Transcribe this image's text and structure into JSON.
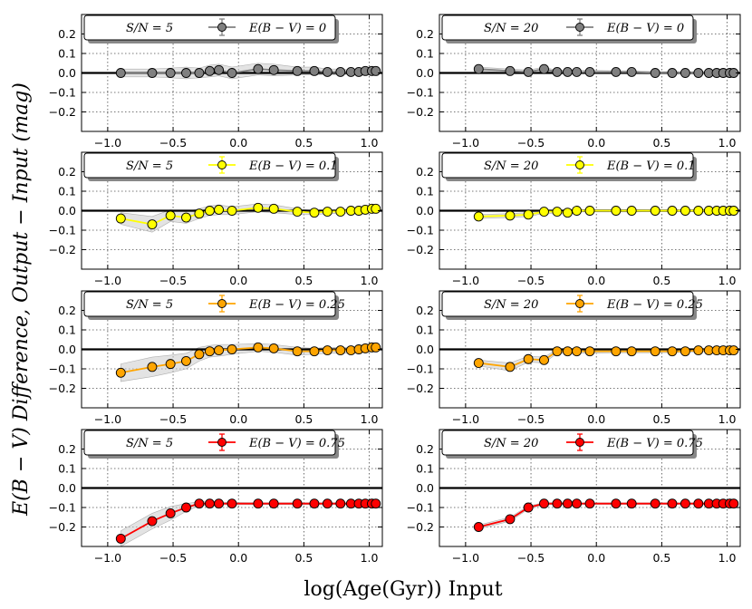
{
  "figure": {
    "ylabel": "E(B − V) Difference, Output − Input (mag)",
    "xlabel": "log(Age(Gyr)) Input"
  },
  "chart_data": [
    {
      "type": "line",
      "sn": "S/N = 5",
      "series_name": "E(B − V) = 0",
      "color": "#808080",
      "x": [
        -0.9,
        -0.66,
        -0.52,
        -0.4,
        -0.3,
        -0.22,
        -0.15,
        -0.05,
        0.15,
        0.27,
        0.45,
        0.58,
        0.68,
        0.78,
        0.86,
        0.92,
        0.97,
        1.02,
        1.05
      ],
      "y": [
        0.0,
        0.0,
        0.0,
        0.0,
        0.0,
        0.01,
        0.015,
        0.0,
        0.02,
        0.015,
        0.01,
        0.01,
        0.005,
        0.005,
        0.005,
        0.005,
        0.01,
        0.01,
        0.01
      ],
      "band": [
        0.02,
        0.02,
        0.025,
        0.03,
        0.025,
        0.03,
        0.03,
        0.03,
        0.03,
        0.03,
        0.02,
        0.02,
        0.015,
        0.015,
        0.01,
        0.01,
        0.01,
        0.01,
        0.01
      ]
    },
    {
      "type": "line",
      "sn": "S/N = 20",
      "series_name": "E(B − V) = 0",
      "color": "#808080",
      "x": [
        -0.9,
        -0.66,
        -0.52,
        -0.4,
        -0.3,
        -0.22,
        -0.15,
        -0.05,
        0.15,
        0.27,
        0.45,
        0.58,
        0.68,
        0.78,
        0.86,
        0.92,
        0.97,
        1.02,
        1.05
      ],
      "y": [
        0.02,
        0.01,
        0.005,
        0.02,
        0.005,
        0.005,
        0.005,
        0.005,
        0.005,
        0.005,
        0.0,
        0.0,
        0.0,
        0.0,
        0.0,
        0.0,
        0.0,
        0.0,
        0.0
      ],
      "band": [
        0.01,
        0.01,
        0.01,
        0.01,
        0.008,
        0.008,
        0.008,
        0.008,
        0.006,
        0.006,
        0.006,
        0.005,
        0.005,
        0.005,
        0.005,
        0.005,
        0.005,
        0.005,
        0.005
      ]
    },
    {
      "type": "line",
      "sn": "S/N = 5",
      "series_name": "E(B − V) = 0.1",
      "color": "#ffff00",
      "x": [
        -0.9,
        -0.66,
        -0.52,
        -0.4,
        -0.3,
        -0.22,
        -0.15,
        -0.05,
        0.15,
        0.27,
        0.45,
        0.58,
        0.68,
        0.78,
        0.86,
        0.92,
        0.97,
        1.02,
        1.05
      ],
      "y": [
        -0.04,
        -0.07,
        -0.025,
        -0.035,
        -0.015,
        0.0,
        0.005,
        0.0,
        0.015,
        0.01,
        -0.005,
        -0.01,
        -0.005,
        -0.005,
        0.0,
        0.0,
        0.005,
        0.01,
        0.01
      ],
      "band": [
        0.03,
        0.04,
        0.03,
        0.03,
        0.025,
        0.025,
        0.025,
        0.02,
        0.02,
        0.02,
        0.015,
        0.01,
        0.01,
        0.01,
        0.01,
        0.01,
        0.01,
        0.01,
        0.01
      ]
    },
    {
      "type": "line",
      "sn": "S/N = 20",
      "series_name": "E(B − V) = 0.1",
      "color": "#ffff00",
      "x": [
        -0.9,
        -0.66,
        -0.52,
        -0.4,
        -0.3,
        -0.22,
        -0.15,
        -0.05,
        0.15,
        0.27,
        0.45,
        0.58,
        0.68,
        0.78,
        0.86,
        0.92,
        0.97,
        1.02,
        1.05
      ],
      "y": [
        -0.03,
        -0.025,
        -0.02,
        -0.005,
        -0.005,
        -0.01,
        0.0,
        0.0,
        0.0,
        0.0,
        0.0,
        0.0,
        0.0,
        0.0,
        0.0,
        0.0,
        0.0,
        0.0,
        0.0
      ],
      "band": [
        0.01,
        0.01,
        0.01,
        0.008,
        0.008,
        0.008,
        0.006,
        0.006,
        0.006,
        0.006,
        0.005,
        0.005,
        0.005,
        0.005,
        0.005,
        0.005,
        0.005,
        0.005,
        0.005
      ]
    },
    {
      "type": "line",
      "sn": "S/N = 5",
      "series_name": "E(B − V) = 0.25",
      "color": "#ffa500",
      "x": [
        -0.9,
        -0.66,
        -0.52,
        -0.4,
        -0.3,
        -0.22,
        -0.15,
        -0.05,
        0.15,
        0.27,
        0.45,
        0.58,
        0.68,
        0.78,
        0.86,
        0.92,
        0.97,
        1.02,
        1.05
      ],
      "y": [
        -0.12,
        -0.09,
        -0.075,
        -0.06,
        -0.025,
        -0.01,
        -0.005,
        0.0,
        0.01,
        0.005,
        -0.01,
        -0.01,
        -0.005,
        -0.005,
        -0.005,
        0.0,
        0.005,
        0.01,
        0.01
      ],
      "band": [
        0.045,
        0.05,
        0.045,
        0.04,
        0.035,
        0.03,
        0.03,
        0.025,
        0.02,
        0.02,
        0.02,
        0.015,
        0.015,
        0.015,
        0.015,
        0.015,
        0.015,
        0.01,
        0.01
      ]
    },
    {
      "type": "line",
      "sn": "S/N = 20",
      "series_name": "E(B − V) = 0.25",
      "color": "#ffa500",
      "x": [
        -0.9,
        -0.66,
        -0.52,
        -0.4,
        -0.3,
        -0.22,
        -0.15,
        -0.05,
        0.15,
        0.27,
        0.45,
        0.58,
        0.68,
        0.78,
        0.86,
        0.92,
        0.97,
        1.02,
        1.05
      ],
      "y": [
        -0.07,
        -0.09,
        -0.05,
        -0.055,
        -0.01,
        -0.01,
        -0.01,
        -0.01,
        -0.01,
        -0.01,
        -0.01,
        -0.01,
        -0.01,
        -0.005,
        -0.005,
        -0.005,
        -0.005,
        -0.005,
        -0.005
      ],
      "band": [
        0.015,
        0.02,
        0.015,
        0.015,
        0.01,
        0.01,
        0.01,
        0.01,
        0.008,
        0.008,
        0.008,
        0.006,
        0.006,
        0.006,
        0.006,
        0.006,
        0.006,
        0.006,
        0.006
      ]
    },
    {
      "type": "line",
      "sn": "S/N = 5",
      "series_name": "E(B − V) = 0.75",
      "color": "#ff0000",
      "x": [
        -0.9,
        -0.66,
        -0.52,
        -0.4,
        -0.3,
        -0.22,
        -0.15,
        -0.05,
        0.15,
        0.27,
        0.45,
        0.58,
        0.68,
        0.78,
        0.86,
        0.92,
        0.97,
        1.02,
        1.05
      ],
      "y": [
        -0.26,
        -0.17,
        -0.13,
        -0.1,
        -0.08,
        -0.08,
        -0.08,
        -0.08,
        -0.08,
        -0.08,
        -0.08,
        -0.08,
        -0.08,
        -0.08,
        -0.08,
        -0.08,
        -0.08,
        -0.08,
        -0.08
      ],
      "band": [
        0.04,
        0.04,
        0.035,
        0.02,
        0.01,
        0.008,
        0.006,
        0.006,
        0.005,
        0.005,
        0.005,
        0.005,
        0.005,
        0.005,
        0.005,
        0.005,
        0.005,
        0.005,
        0.005
      ]
    },
    {
      "type": "line",
      "sn": "S/N = 20",
      "series_name": "E(B − V) = 0.75",
      "color": "#ff0000",
      "x": [
        -0.9,
        -0.66,
        -0.52,
        -0.4,
        -0.3,
        -0.22,
        -0.15,
        -0.05,
        0.15,
        0.27,
        0.45,
        0.58,
        0.68,
        0.78,
        0.86,
        0.92,
        0.97,
        1.02,
        1.05
      ],
      "y": [
        -0.2,
        -0.16,
        -0.1,
        -0.08,
        -0.08,
        -0.08,
        -0.08,
        -0.08,
        -0.08,
        -0.08,
        -0.08,
        -0.08,
        -0.08,
        -0.08,
        -0.08,
        -0.08,
        -0.08,
        -0.08,
        -0.08
      ],
      "band": [
        0.01,
        0.01,
        0.008,
        0.005,
        0.004,
        0.004,
        0.004,
        0.004,
        0.004,
        0.004,
        0.004,
        0.004,
        0.004,
        0.004,
        0.004,
        0.004,
        0.004,
        0.004,
        0.004
      ]
    }
  ],
  "axes": {
    "xlim": [
      -1.2,
      1.1
    ],
    "ylim": [
      -0.3,
      0.3
    ],
    "xticks": [
      -1.0,
      -0.5,
      0.0,
      0.5,
      1.0
    ],
    "xticklabels": [
      "−1.0",
      "−0.5",
      "0.0",
      "0.5",
      "1.0"
    ],
    "yticks": [
      -0.2,
      -0.1,
      0.0,
      0.1,
      0.2
    ],
    "yticklabels": [
      "−0.2",
      "−0.1",
      "0.0",
      "0.1",
      "0.2"
    ],
    "grid": true,
    "legend_placement": "top",
    "zero_line": true
  }
}
